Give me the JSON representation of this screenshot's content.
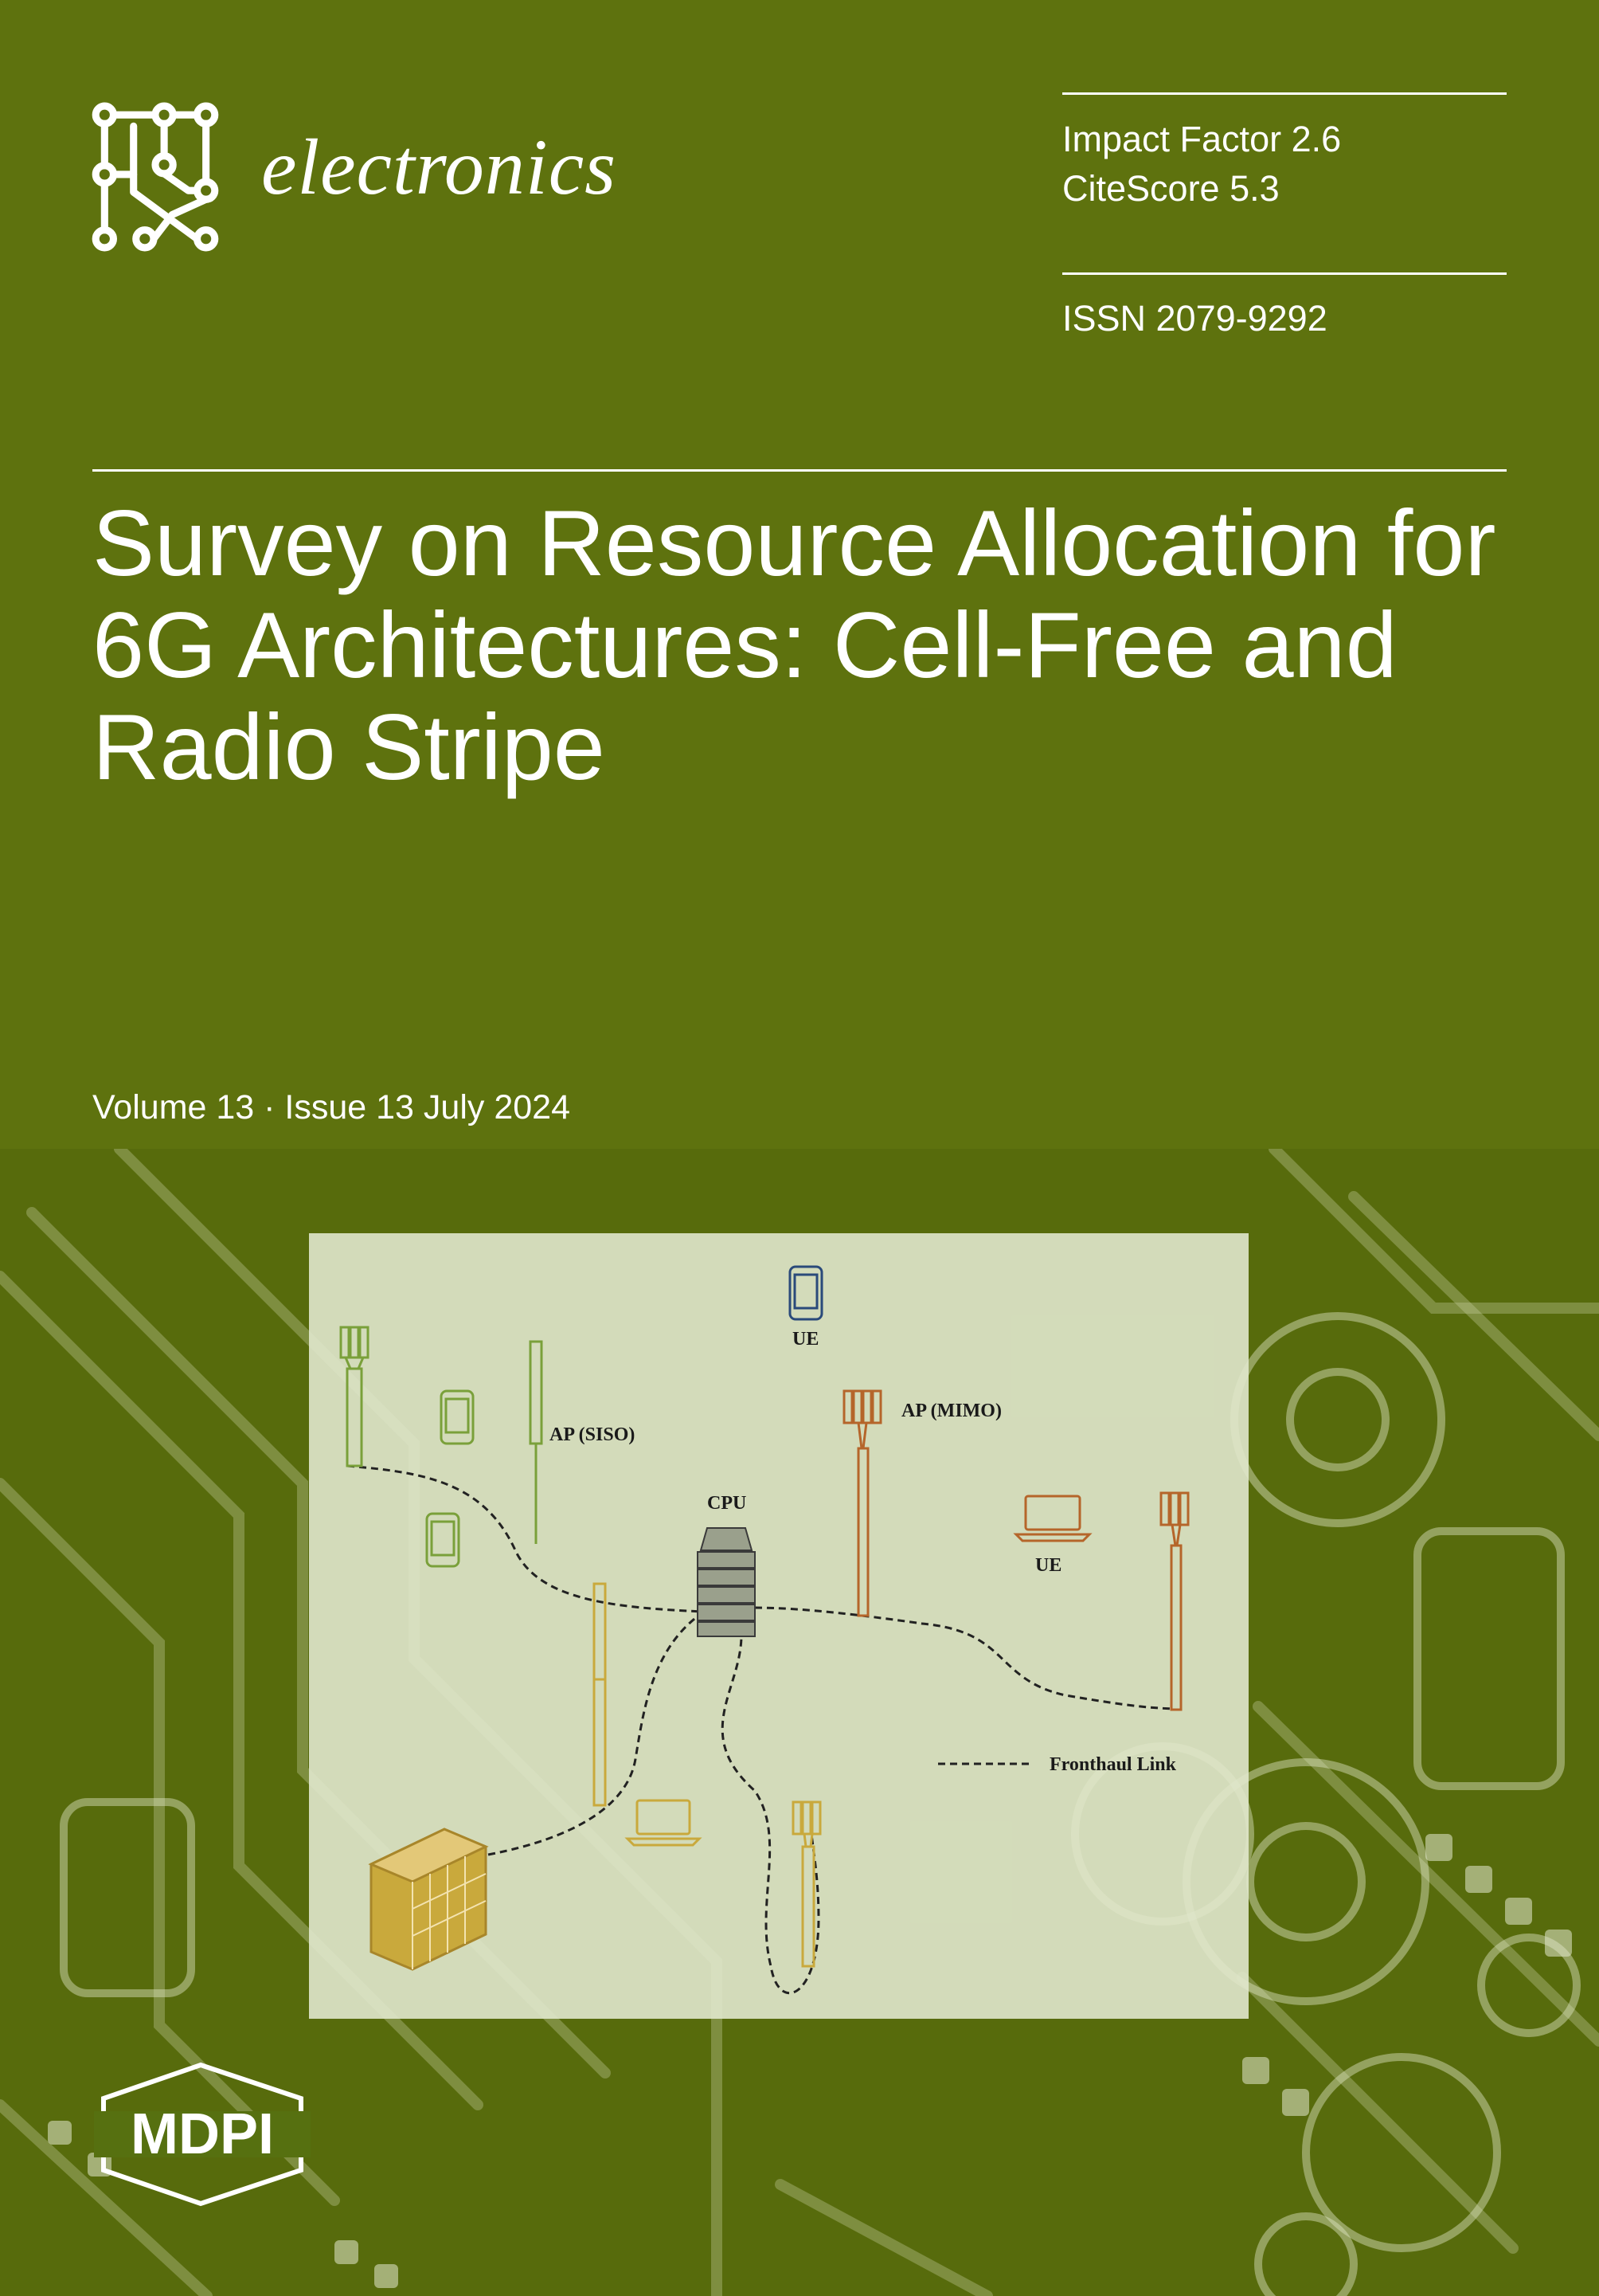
{
  "journal": {
    "name": "electronics"
  },
  "metrics": {
    "impact_factor": "Impact Factor 2.6",
    "citescore": "CiteScore 5.3",
    "issn": "ISSN 2079-9292"
  },
  "article": {
    "title": "Survey on Resource Allocation for 6G Architectures: Cell-Free and Radio Stripe"
  },
  "issue": {
    "volume_issue": "Volume 13 · Issue 13 July 2024"
  },
  "figure": {
    "labels": {
      "ue_top": "UE",
      "ap_siso": "AP (SISO)",
      "ap_mimo": "AP (MIMO)",
      "cpu": "CPU",
      "ue_right": "UE",
      "legend": "Fronthaul Link"
    }
  },
  "publisher": {
    "name": "MDPI"
  },
  "colors": {
    "background": "#5e720e",
    "text": "#ffffff",
    "siso_ap": "#7aa03a",
    "mimo_ap": "#b5652a",
    "stripe_ap": "#c9a93c"
  },
  "icons": [
    "circuit-logo-icon",
    "mdpi-logo-icon",
    "antenna-icon",
    "phone-icon",
    "laptop-icon",
    "server-icon",
    "building-icon"
  ]
}
